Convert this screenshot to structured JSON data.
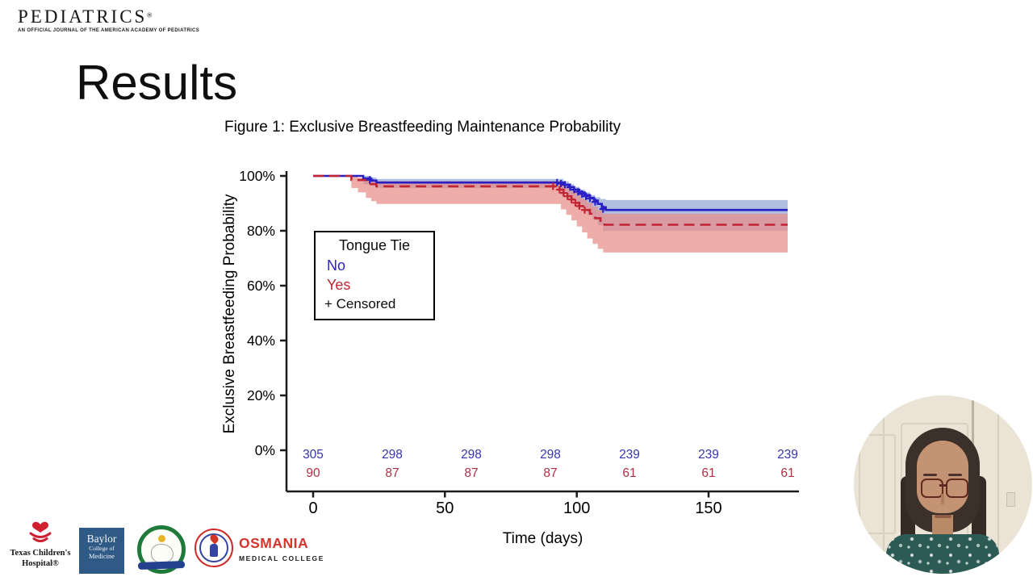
{
  "header": {
    "journal": "PEDIATRICS",
    "registered": "®",
    "tagline": "AN OFFICIAL JOURNAL OF THE AMERICAN ACADEMY OF PEDIATRICS"
  },
  "slide": {
    "title": "Results"
  },
  "figure": {
    "title": "Figure 1: Exclusive Breastfeeding Maintenance Probability",
    "x_axis_label": "Time (days)",
    "y_axis_label": "Exclusive Breastfeeding Probability",
    "legend": {
      "title": "Tongue Tie",
      "no_label": "No",
      "yes_label": "Yes",
      "censored_label": "+ Censored"
    }
  },
  "chart_data": {
    "type": "line",
    "subtype": "kaplan-meier-survival",
    "title": "Figure 1: Exclusive Breastfeeding Maintenance Probability",
    "xlabel": "Time (days)",
    "ylabel": "Exclusive Breastfeeding Probability",
    "xlim": [
      0,
      186
    ],
    "ylim": [
      0,
      100
    ],
    "grid": false,
    "legend_position": "inside-left-middle",
    "axis_color": "#1a1a1a",
    "xticks": [
      [
        0,
        "0"
      ],
      [
        50,
        "50"
      ],
      [
        100,
        "100"
      ],
      [
        150,
        "150"
      ]
    ],
    "yticks": [
      [
        0,
        "0%"
      ],
      [
        20,
        "20%"
      ],
      [
        40,
        "40%"
      ],
      [
        60,
        "60%"
      ],
      [
        80,
        "80%"
      ],
      [
        100,
        "100%"
      ]
    ],
    "series": [
      {
        "name": "No",
        "group": "Tongue Tie = No",
        "color": "#2a1fc4",
        "line_style": "solid",
        "band_color": "#8fa6d5",
        "steps": [
          [
            0,
            100
          ],
          [
            19,
            99.1
          ],
          [
            22,
            98.3
          ],
          [
            24,
            97.6
          ],
          [
            92,
            97.6
          ],
          [
            95,
            96.8
          ],
          [
            97,
            95.9
          ],
          [
            99,
            95.0
          ],
          [
            101,
            94.0
          ],
          [
            103,
            93.0
          ],
          [
            105,
            92.0
          ],
          [
            106.5,
            91.0
          ],
          [
            108,
            89.8
          ],
          [
            109.5,
            88.6
          ],
          [
            111,
            87.6
          ],
          [
            180,
            87.6
          ]
        ],
        "ci_upper": [
          [
            19,
            100
          ],
          [
            22,
            99.4
          ],
          [
            24,
            98.9
          ],
          [
            92,
            98.9
          ],
          [
            95,
            98.0
          ],
          [
            97,
            97.0
          ],
          [
            99,
            96.0
          ],
          [
            101,
            95.0
          ],
          [
            103,
            94.0
          ],
          [
            105,
            93.0
          ],
          [
            107,
            92.2
          ],
          [
            109,
            91.6
          ],
          [
            111,
            91.2
          ],
          [
            180,
            91.2
          ]
        ],
        "ci_lower": [
          [
            19,
            97.0
          ],
          [
            21,
            96.8
          ],
          [
            24,
            95.6
          ],
          [
            92,
            95.6
          ],
          [
            94,
            94.4
          ],
          [
            96,
            93.0
          ],
          [
            98,
            91.5
          ],
          [
            100,
            89.8
          ],
          [
            102,
            88.0
          ],
          [
            104,
            86.0
          ],
          [
            106,
            84.0
          ],
          [
            108,
            82.0
          ],
          [
            110,
            79.9
          ],
          [
            180,
            79.9
          ]
        ],
        "censored": [
          [
            21.5,
            98.6
          ],
          [
            92.5,
            97.6
          ],
          [
            94,
            97.2
          ],
          [
            95.5,
            96.8
          ],
          [
            97.5,
            95.9
          ],
          [
            99,
            95.0
          ],
          [
            100.5,
            94.2
          ],
          [
            102,
            93.4
          ],
          [
            103.5,
            92.6
          ],
          [
            105,
            91.8
          ],
          [
            107,
            90.5
          ],
          [
            110,
            87.9
          ]
        ]
      },
      {
        "name": "Yes",
        "group": "Tongue Tie = Yes",
        "color": "#c22433",
        "line_style": "dashed",
        "band_color": "#e78d88",
        "steps": [
          [
            0,
            100
          ],
          [
            14.5,
            98.5
          ],
          [
            21,
            97.0
          ],
          [
            24,
            96.2
          ],
          [
            92,
            96.2
          ],
          [
            93.5,
            95.0
          ],
          [
            95,
            93.8
          ],
          [
            96.5,
            92.6
          ],
          [
            98,
            91.4
          ],
          [
            99.5,
            90.2
          ],
          [
            101,
            89.0
          ],
          [
            103,
            87.6
          ],
          [
            105,
            86.2
          ],
          [
            107,
            84.6
          ],
          [
            109,
            83.2
          ],
          [
            110.5,
            82.2
          ],
          [
            180,
            82.2
          ]
        ],
        "ci_upper": [
          [
            14.5,
            99.9
          ],
          [
            17,
            99.3
          ],
          [
            22,
            98.6
          ],
          [
            24,
            98.1
          ],
          [
            92,
            98.1
          ],
          [
            94,
            97.0
          ],
          [
            96,
            95.8
          ],
          [
            98,
            94.4
          ],
          [
            100,
            93.0
          ],
          [
            102,
            91.6
          ],
          [
            104,
            90.2
          ],
          [
            106,
            88.8
          ],
          [
            108,
            87.4
          ],
          [
            110,
            86.2
          ],
          [
            180,
            86.2
          ]
        ],
        "ci_lower": [
          [
            14.5,
            95.6
          ],
          [
            17,
            94.0
          ],
          [
            20,
            92.0
          ],
          [
            22,
            90.8
          ],
          [
            24,
            89.8
          ],
          [
            92,
            89.8
          ],
          [
            94,
            87.8
          ],
          [
            96,
            85.8
          ],
          [
            98,
            83.8
          ],
          [
            100,
            81.6
          ],
          [
            102,
            79.4
          ],
          [
            104,
            77.2
          ],
          [
            106,
            75.2
          ],
          [
            108,
            73.4
          ],
          [
            110,
            72.1
          ],
          [
            180,
            72.1
          ]
        ],
        "censored": [
          [
            91,
            96.2
          ],
          [
            93.5,
            95.0
          ],
          [
            95,
            93.8
          ],
          [
            96.5,
            92.6
          ],
          [
            98,
            91.4
          ],
          [
            99.5,
            90.2
          ],
          [
            101,
            89.0
          ],
          [
            103,
            87.6
          ]
        ]
      }
    ],
    "at_risk": {
      "times": [
        0,
        30,
        60,
        90,
        120,
        150,
        180
      ],
      "rows": [
        {
          "name": "No",
          "color": "#3734b0",
          "values": [
            305,
            298,
            298,
            298,
            239,
            239,
            239
          ]
        },
        {
          "name": "Yes",
          "color": "#ad2f44",
          "values": [
            90,
            87,
            87,
            87,
            61,
            61,
            61
          ]
        }
      ]
    }
  },
  "sponsors": {
    "texas_childrens": {
      "line1": "Texas Children's",
      "line2": "Hospital®"
    },
    "baylor": {
      "line1": "Baylor",
      "line2": "College of",
      "line3": "Medicine"
    },
    "osmania": {
      "name": "OSMANIA",
      "subtitle": "MEDICAL COLLEGE"
    }
  },
  "webcam": {
    "label": "presenter video"
  }
}
